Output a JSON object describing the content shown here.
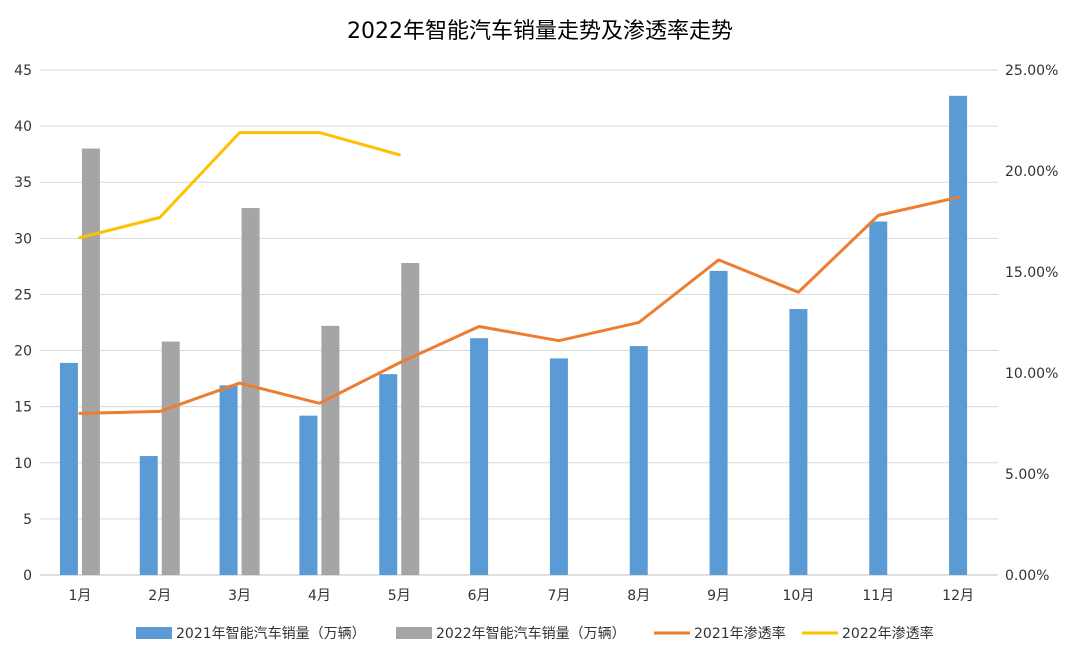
{
  "chart_data": {
    "type": "bar+line",
    "title": "2022年智能汽车销量走势及渗透率走势",
    "categories": [
      "1月",
      "2月",
      "3月",
      "4月",
      "5月",
      "6月",
      "7月",
      "8月",
      "9月",
      "10月",
      "11月",
      "12月"
    ],
    "y_left": {
      "min": 0,
      "max": 45,
      "step": 5,
      "ticks": [
        "0",
        "5",
        "10",
        "15",
        "20",
        "25",
        "30",
        "35",
        "40",
        "45"
      ]
    },
    "y_right": {
      "min": 0,
      "max": 0.25,
      "step": 0.05,
      "ticks": [
        "0.00%",
        "5.00%",
        "10.00%",
        "15.00%",
        "20.00%",
        "25.00%"
      ]
    },
    "grid": true,
    "legend_position": "bottom",
    "series": [
      {
        "name": "2021年智能汽车销量（万辆）",
        "kind": "bar",
        "axis": "left",
        "color": "#5b9bd5",
        "values": [
          18.9,
          10.6,
          16.9,
          14.2,
          17.9,
          21.1,
          19.3,
          20.4,
          27.1,
          23.7,
          31.5,
          42.7
        ]
      },
      {
        "name": "2022年智能汽车销量（万辆）",
        "kind": "bar",
        "axis": "left",
        "color": "#a5a5a5",
        "values": [
          38.0,
          20.8,
          32.7,
          22.2,
          27.8,
          null,
          null,
          null,
          null,
          null,
          null,
          null
        ]
      },
      {
        "name": "2021年渗透率",
        "kind": "line",
        "axis": "right",
        "color": "#ed7d31",
        "values": [
          0.08,
          0.081,
          0.095,
          0.085,
          0.105,
          0.123,
          0.116,
          0.125,
          0.156,
          0.14,
          0.178,
          0.187
        ]
      },
      {
        "name": "2022年渗透率",
        "kind": "line",
        "axis": "right",
        "color": "#ffc000",
        "values": [
          0.167,
          0.177,
          0.219,
          0.219,
          0.208,
          null,
          null,
          null,
          null,
          null,
          null,
          null
        ]
      }
    ]
  }
}
